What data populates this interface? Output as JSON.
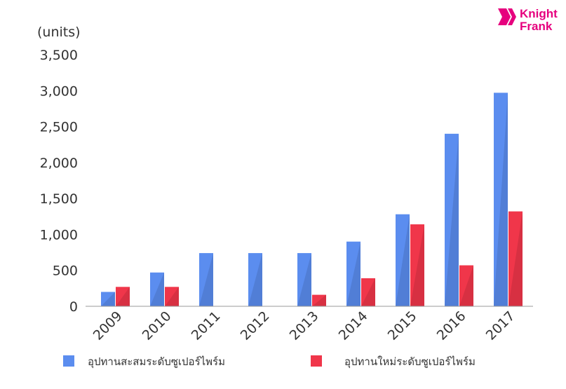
{
  "logo": {
    "line1": "Knight",
    "line2": "Frank",
    "color": "#e6007e"
  },
  "chart_data": {
    "type": "bar",
    "ylabel": "(units)",
    "ylim": [
      0,
      3500
    ],
    "yticks": [
      0,
      500,
      1000,
      1500,
      2000,
      2500,
      3000,
      3500
    ],
    "ytick_labels": [
      "0",
      "500",
      "1,000",
      "1,500",
      "2,000",
      "2,500",
      "3,000",
      "3,500"
    ],
    "categories": [
      "2009",
      "2010",
      "2011",
      "2012",
      "2013",
      "2014",
      "2015",
      "2016",
      "2017"
    ],
    "grid": false,
    "legend_position": "bottom",
    "series": [
      {
        "name": "อุปทานสะสมระดับซูเปอร์ไพร์ม",
        "color": "#5b8def",
        "values": [
          200,
          470,
          740,
          740,
          740,
          900,
          1280,
          2400,
          2970
        ]
      },
      {
        "name": "อุปทานใหม่ระดับซูเปอร์ไพร์ม",
        "color": "#f0364a",
        "values": [
          270,
          270,
          0,
          0,
          160,
          390,
          1140,
          570,
          1320
        ]
      }
    ]
  }
}
